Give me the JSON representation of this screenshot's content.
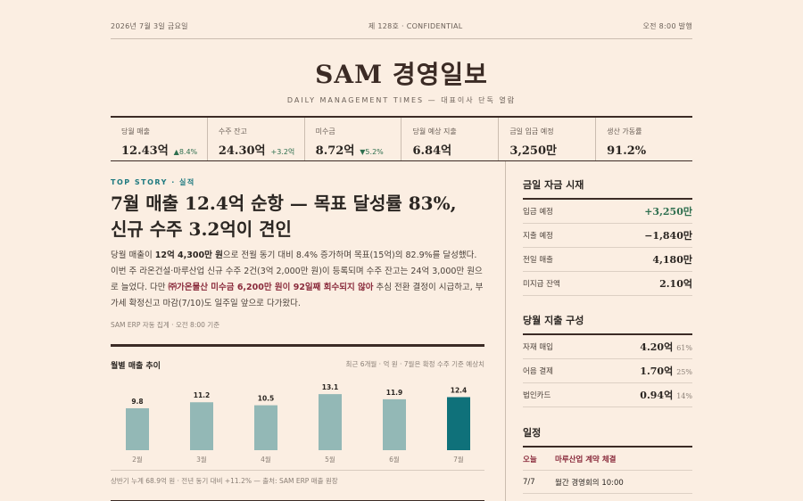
{
  "topbar": {
    "date": "2026년 7월 3일 금요일",
    "issue": "제 128호 · CONFIDENTIAL",
    "published": "오전 8:00 발행"
  },
  "masthead": {
    "title": "SAM 경영일보",
    "tagline": "DAILY MANAGEMENT TIMES — 대표이사 단독 열람"
  },
  "kpis": [
    {
      "label": "당월 매출",
      "value": "12.43억",
      "delta": "▲8.4%"
    },
    {
      "label": "수주 잔고",
      "value": "24.30억",
      "delta": "+3.2억"
    },
    {
      "label": "미수금",
      "value": "8.72억",
      "delta": "▼5.2%"
    },
    {
      "label": "당월 예상 지출",
      "value": "6.84억",
      "delta": ""
    },
    {
      "label": "금일 입금 예정",
      "value": "3,250만",
      "delta": ""
    },
    {
      "label": "생산 가동률",
      "value": "91.2%",
      "delta": ""
    }
  ],
  "story": {
    "kicker": "TOP STORY · 실적",
    "headline_1": "7월 매출 12.4억 순항 — 목표 달성률 83%,",
    "headline_2": "신규 수주 3.2억이 견인",
    "body": {
      "p1": "당월 매출이 ",
      "b1": "12억 4,300만 원",
      "p2": "으로 전월 동기 대비 8.4% 증가하며 목표(15억)의 82.9%를 달성했다. 이번 주 라온건설·마루산업 신규 수주 2건(3억 2,000만 원)이 등록되며 수주 잔고는 24억 3,000만 원으로 늘었다. 다만 ",
      "alert": "㈜가온물산 미수금 6,200만 원이 92일째 회수되지 않아",
      "p3": " 추심 전환 결정이 시급하고, 부가세 확정신고 마감(7/10)도 일주일 앞으로 다가왔다."
    },
    "source": "SAM ERP 자동 집계 · 오전 8:00 기준"
  },
  "chart_data": {
    "type": "bar",
    "title": "월별 매출 추이",
    "subtitle": "최근 6개월 · 억 원 · 7월은 확정 수주 기준 예상치",
    "categories": [
      "2월",
      "3월",
      "4월",
      "5월",
      "6월",
      "7월"
    ],
    "values": [
      9.8,
      11.2,
      10.5,
      13.1,
      11.9,
      12.4
    ],
    "ylim": [
      0,
      14
    ],
    "highlight_index": 5,
    "colors": {
      "bar": "#93b8b6",
      "highlight": "#0f717a"
    },
    "footnote": "상반기 누계 68.9억 원 · 전년 동기 대비 +11.2% — 출처: SAM ERP 매출 원장",
    "grid": false
  },
  "cash": {
    "title": "금일 자금 시재",
    "rows": [
      {
        "label": "입금 예정",
        "value": "+3,250만"
      },
      {
        "label": "지출 예정",
        "value": "−1,840만"
      },
      {
        "label": "전일 매출",
        "value": "4,180만"
      },
      {
        "label": "미지급 잔액",
        "value": "2.10억"
      }
    ]
  },
  "spend": {
    "title": "당월 지출 구성",
    "rows": [
      {
        "label": "자재 매입",
        "value": "4.20억",
        "pct": "61%"
      },
      {
        "label": "어음 결제",
        "value": "1.70억",
        "pct": "25%"
      },
      {
        "label": "법인카드",
        "value": "0.94억",
        "pct": "14%"
      }
    ]
  },
  "schedule": {
    "title": "일정",
    "rows": [
      {
        "date": "오늘",
        "text": "마루산업 계약 체결"
      },
      {
        "date": "7/7",
        "text": "월간 경영회의 10:00"
      }
    ]
  },
  "colors": {
    "background": "#fbeee2",
    "accent_teal": "#1f7a80",
    "positive": "#2f6f4f",
    "alert": "#8a2b3c"
  }
}
